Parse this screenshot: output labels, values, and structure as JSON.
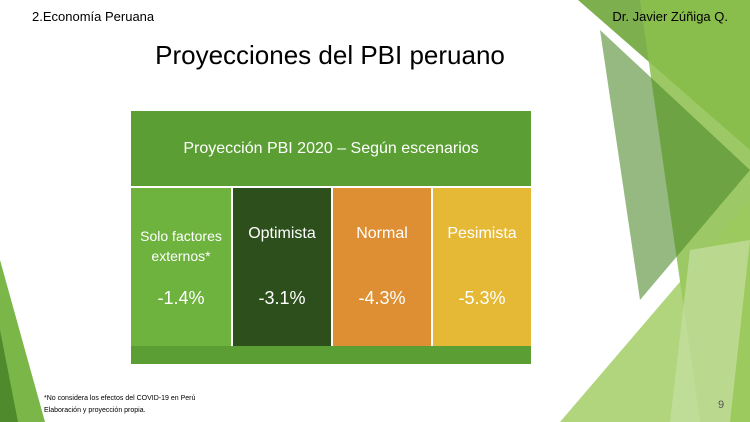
{
  "header": {
    "section": "2.Economía Peruana",
    "author": "Dr. Javier Zúñiga Q."
  },
  "title": "Proyecciones del PBI peruano",
  "table": {
    "title": "Proyección PBI 2020 – Según escenarios",
    "scenarios": [
      {
        "name": "Solo factores externos*",
        "value": "-1.4%"
      },
      {
        "name": "Optimista",
        "value": "-3.1%"
      },
      {
        "name": "Normal",
        "value": "-4.3%"
      },
      {
        "name": "Pesimista",
        "value": "-5.3%"
      }
    ]
  },
  "footnotes": [
    "*No considera los efectos del COVID-19 en Perú",
    "Elaboración y proyección propia."
  ],
  "page_number": "9"
}
